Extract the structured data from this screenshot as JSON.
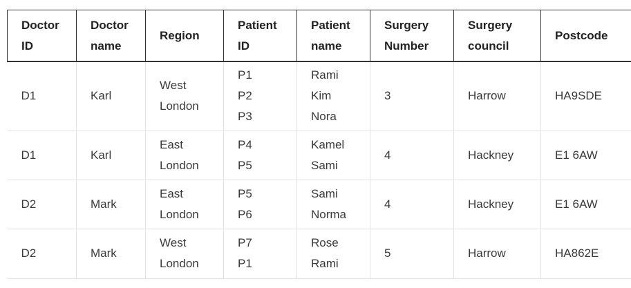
{
  "table": {
    "headers": [
      [
        "Doctor",
        "ID"
      ],
      [
        "Doctor",
        "name"
      ],
      [
        "Region"
      ],
      [
        "Patient",
        "ID"
      ],
      [
        "Patient",
        "name"
      ],
      [
        "Surgery",
        "Number"
      ],
      [
        "Surgery",
        "council"
      ],
      [
        "Postcode"
      ]
    ],
    "rows": [
      {
        "doctor_id": "D1",
        "doctor_name": "Karl",
        "region": [
          "West",
          "London"
        ],
        "patient_id": [
          "P1",
          "P2",
          "P3"
        ],
        "patient_name": [
          "Rami",
          "Kim",
          "Nora"
        ],
        "surgery_number": "3",
        "surgery_council": "Harrow",
        "postcode": "HA9SDE"
      },
      {
        "doctor_id": "D1",
        "doctor_name": "Karl",
        "region": [
          "East",
          "London"
        ],
        "patient_id": [
          "P4",
          "P5"
        ],
        "patient_name": [
          "Kamel",
          "Sami"
        ],
        "surgery_number": "4",
        "surgery_council": "Hackney",
        "postcode": "E1 6AW"
      },
      {
        "doctor_id": "D2",
        "doctor_name": "Mark",
        "region": [
          "East",
          "London"
        ],
        "patient_id": [
          "P5",
          "P6"
        ],
        "patient_name": [
          "Sami",
          "Norma"
        ],
        "surgery_number": "4",
        "surgery_council": "Hackney",
        "postcode": "E1 6AW"
      },
      {
        "doctor_id": "D2",
        "doctor_name": "Mark",
        "region": [
          "West",
          "London"
        ],
        "patient_id": [
          "P7",
          "P1"
        ],
        "patient_name": [
          "Rose",
          "Rami"
        ],
        "surgery_number": "5",
        "surgery_council": "Harrow",
        "postcode": "HA862E"
      }
    ]
  }
}
